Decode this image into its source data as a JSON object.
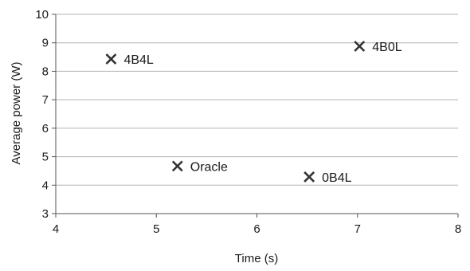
{
  "chart_data": {
    "type": "scatter",
    "title": "",
    "xlabel": "Time (s)",
    "ylabel": "Average power (W)",
    "xlim": [
      4,
      8
    ],
    "ylim": [
      3,
      10
    ],
    "x_ticks": [
      "4",
      "5",
      "6",
      "7",
      "8"
    ],
    "y_ticks": [
      "3",
      "4",
      "5",
      "6",
      "7",
      "8",
      "9",
      "10"
    ],
    "grid": "horizontal",
    "marker": "x",
    "marker_color": "#333333",
    "grid_color": "#b3b3b3",
    "axis_color": "#555555",
    "points": [
      {
        "label": "4B4L",
        "x": 4.55,
        "y": 8.43
      },
      {
        "label": "4B0L",
        "x": 7.02,
        "y": 8.88
      },
      {
        "label": "Oracle",
        "x": 5.21,
        "y": 4.67
      },
      {
        "label": "0B4L",
        "x": 6.52,
        "y": 4.29
      }
    ]
  }
}
